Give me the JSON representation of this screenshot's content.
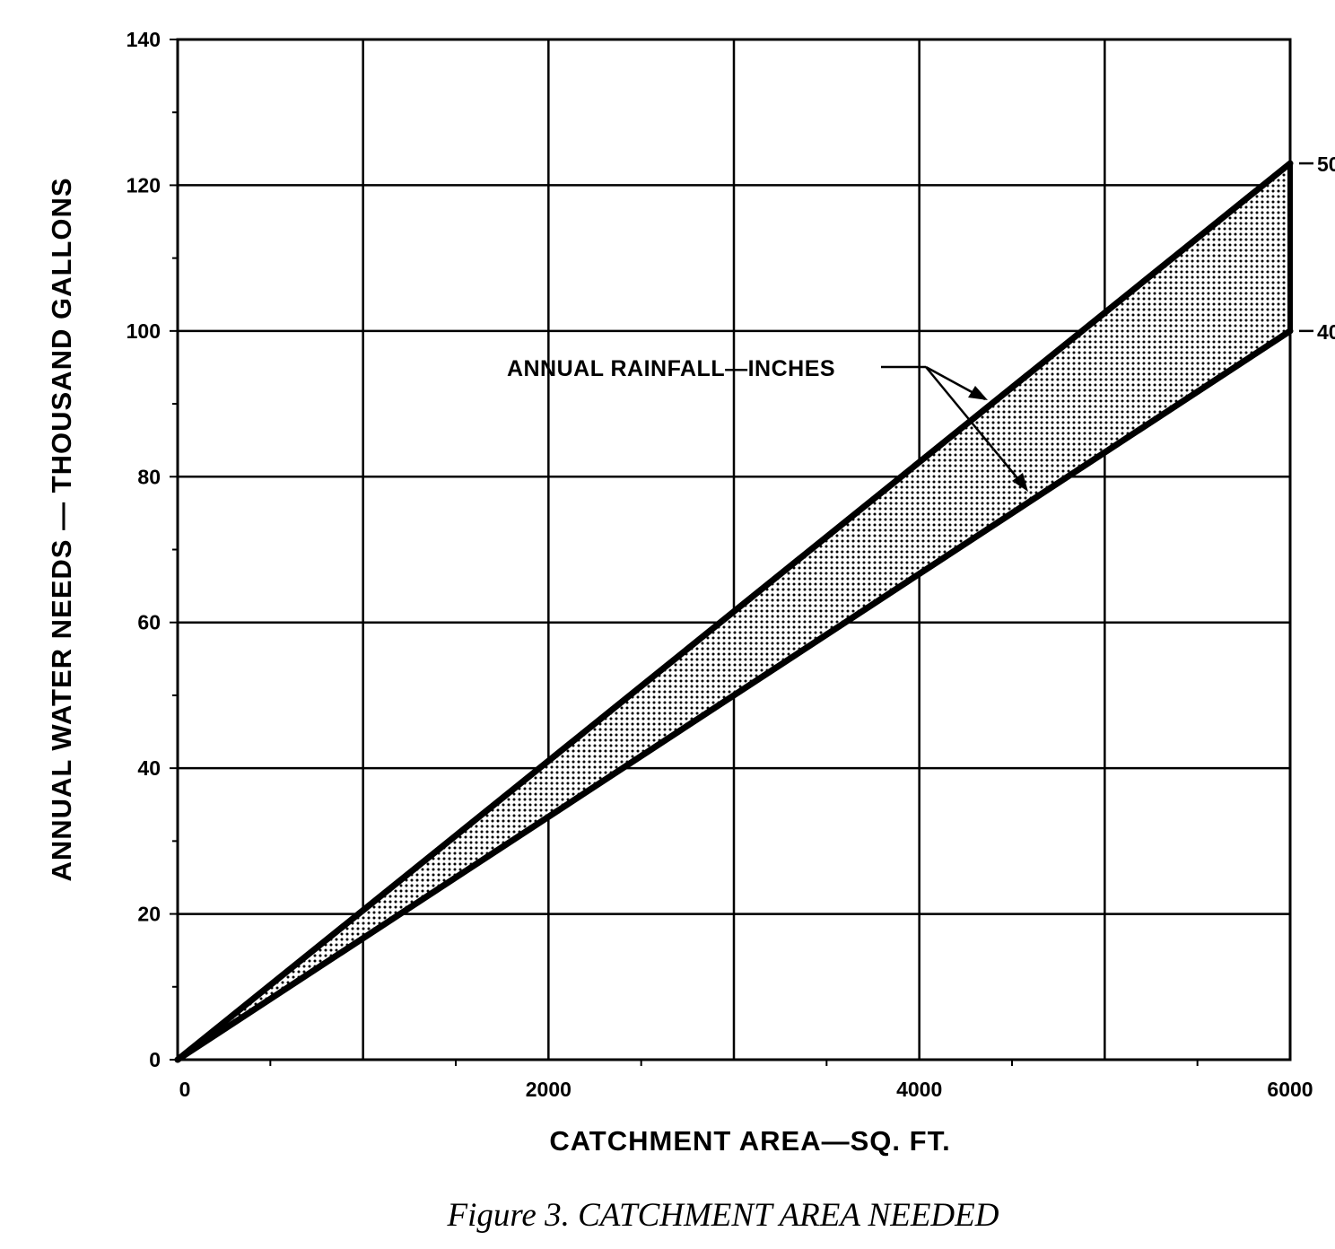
{
  "chart_data": {
    "type": "area",
    "title": "",
    "xlabel": "CATCHMENT AREA—SQ. FT.",
    "ylabel": "ANNUAL WATER NEEDS — THOUSAND GALLONS",
    "xlim": [
      0,
      6000
    ],
    "ylim": [
      0,
      140
    ],
    "x_ticks": [
      0,
      2000,
      4000,
      6000
    ],
    "y_ticks": [
      0,
      20,
      40,
      60,
      80,
      100,
      120,
      140
    ],
    "grid": true,
    "fill_between_series": true,
    "series": [
      {
        "name": "50",
        "x": [
          0,
          6000
        ],
        "values": [
          0,
          123
        ]
      },
      {
        "name": "40",
        "x": [
          0,
          6000
        ],
        "values": [
          0,
          100
        ]
      }
    ],
    "annotation": "ANNUAL RAINFALL—INCHES"
  },
  "caption": "Figure 3. CATCHMENT AREA NEEDED"
}
